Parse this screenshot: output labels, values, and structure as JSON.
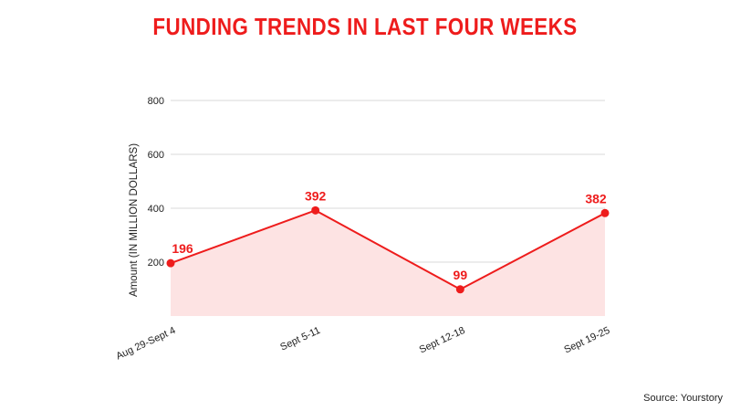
{
  "chart_data": {
    "type": "area",
    "title": "FUNDING TRENDS IN LAST FOUR WEEKS",
    "ylabel": "Amount (IN MILLION DOLLARS)",
    "xlabel": "",
    "categories": [
      "Aug 29-Sept 4",
      "Sept 5-11",
      "Sept 12-18",
      "Sept 19-25"
    ],
    "values": [
      196,
      392,
      99,
      382
    ],
    "data_labels": [
      "196",
      "392",
      "99",
      "382"
    ],
    "yticks": [
      {
        "value": 200,
        "label": "200"
      },
      {
        "value": 400,
        "label": "400"
      },
      {
        "value": 600,
        "label": "600"
      },
      {
        "value": 800,
        "label": "800"
      }
    ],
    "ylim": [
      0,
      800
    ],
    "grid": true,
    "colors": {
      "line": "#ee1c1c",
      "fill": "#fde3e3",
      "title": "#ee1c1c",
      "grid": "#d9d9d9"
    }
  },
  "footer": {
    "source": "Source: Yourstory"
  }
}
